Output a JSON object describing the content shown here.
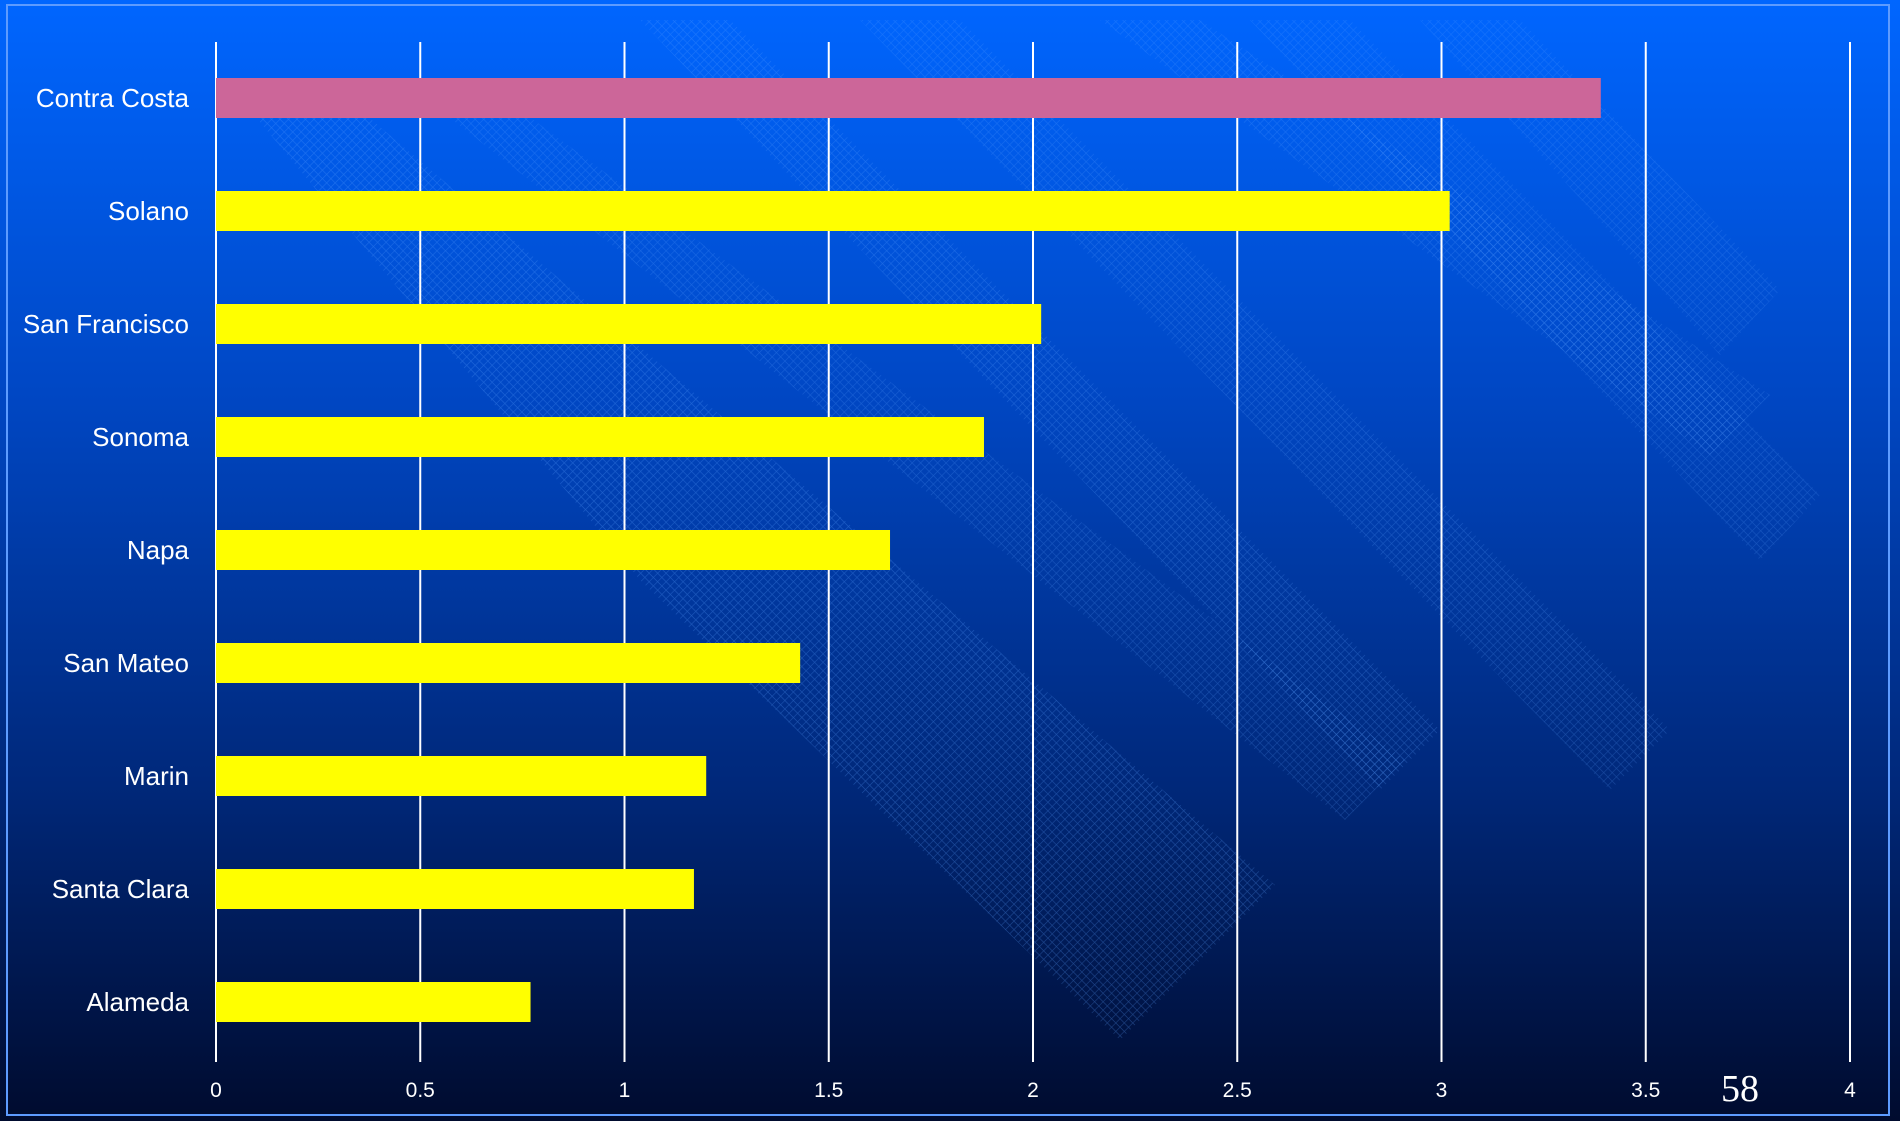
{
  "slide": {
    "number": "58"
  },
  "colors": {
    "background_top": "#0066ff",
    "background_bottom": "#000b2e",
    "highlight_bar": "#cc6699",
    "bar": "#ffff00",
    "gridline": "#ffffff",
    "text": "#ffffff"
  },
  "chart_data": {
    "type": "bar",
    "orientation": "horizontal",
    "categories": [
      "Contra Costa",
      "Solano",
      "San Francisco",
      "Sonoma",
      "Napa",
      "San Mateo",
      "Marin",
      "Santa Clara",
      "Alameda"
    ],
    "values": [
      3.39,
      3.02,
      2.02,
      1.88,
      1.65,
      1.43,
      1.2,
      1.17,
      0.77
    ],
    "highlighted_category": "Contra Costa",
    "xlim": [
      0,
      4
    ],
    "xticks": [
      "0",
      "0.5",
      "1",
      "1.5",
      "2",
      "2.5",
      "3",
      "3.5",
      "4"
    ],
    "grid": true,
    "title": "",
    "xlabel": "",
    "ylabel": ""
  }
}
